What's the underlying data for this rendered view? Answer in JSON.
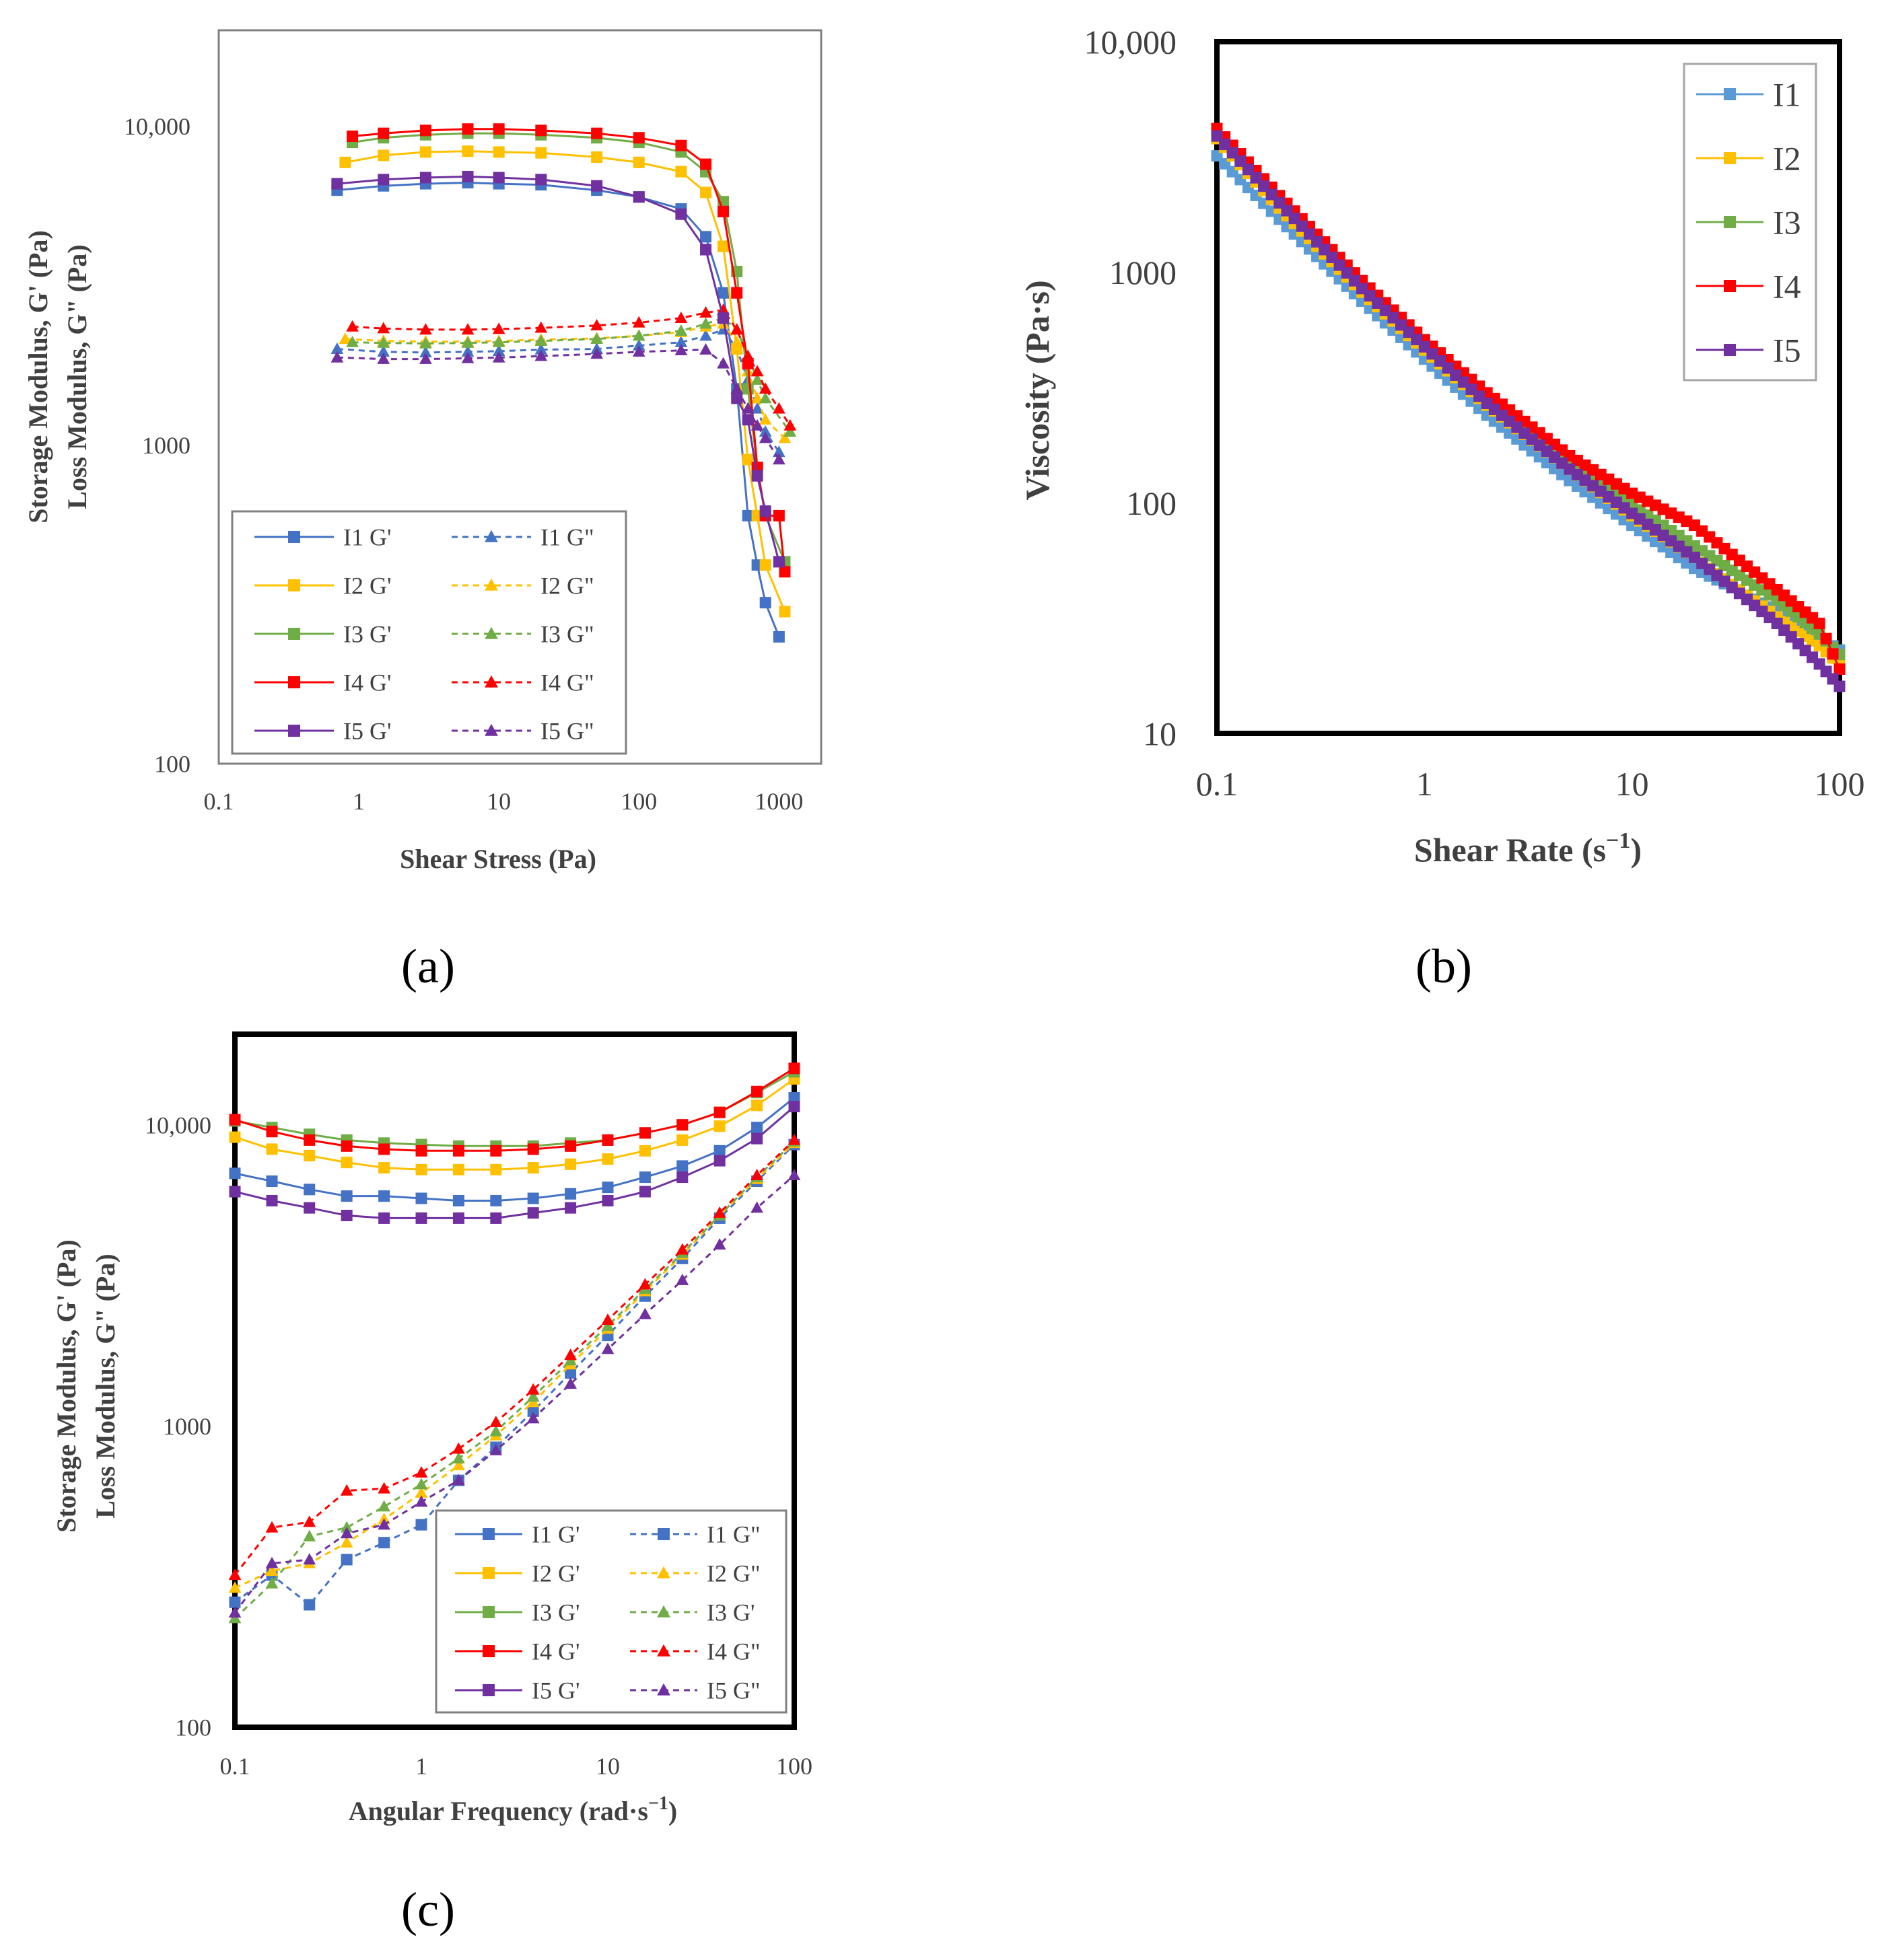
{
  "figure": {
    "panel_labels": [
      "(a)",
      "(b)",
      "(c)"
    ]
  },
  "colors": {
    "I1": "#4472c4",
    "I1b": "#5b9bd5",
    "I2": "#ffc000",
    "I3": "#70ad47",
    "I4": "#ff0000",
    "I5": "#7030a0"
  },
  "chart_data": [
    {
      "id": "a",
      "type": "line",
      "xscale": "log",
      "yscale": "log",
      "xlabel": "Shear Stress (Pa)",
      "ylabel_lines": [
        "Storage Modulus, G' (Pa)",
        "Loss Modulus, G\" (Pa)"
      ],
      "xlim": [
        0.1,
        2000
      ],
      "ylim": [
        100,
        20000
      ],
      "xticks": [
        {
          "value": 0.1,
          "label": "0.1"
        },
        {
          "value": 1,
          "label": "1"
        },
        {
          "value": 10,
          "label": "10"
        },
        {
          "value": 100,
          "label": "100"
        },
        {
          "value": 1000,
          "label": "1000"
        }
      ],
      "yticks": [
        {
          "value": 100,
          "label": "100"
        },
        {
          "value": 1000,
          "label": "1000"
        },
        {
          "value": 10000,
          "label": "10,000"
        }
      ],
      "legend": "bottom-left",
      "series": [
        {
          "name": "I1 G'",
          "color": "#4472c4",
          "marker": "square",
          "dash": false,
          "x": [
            0.7,
            1.5,
            3,
            6,
            10,
            20,
            50,
            100,
            200,
            300,
            400,
            500,
            600,
            700,
            800,
            1000
          ],
          "y": [
            6300,
            6500,
            6600,
            6650,
            6600,
            6550,
            6300,
            6000,
            5500,
            4500,
            3000,
            1500,
            600,
            420,
            320,
            250
          ]
        },
        {
          "name": "I1 G\"",
          "color": "#4472c4",
          "marker": "triangle",
          "dash": true,
          "x": [
            0.7,
            1.5,
            3,
            6,
            10,
            20,
            50,
            100,
            200,
            300,
            400,
            500,
            600,
            700,
            800,
            1000
          ],
          "y": [
            2000,
            1960,
            1950,
            1960,
            1970,
            1990,
            2000,
            2050,
            2100,
            2200,
            2300,
            2000,
            1600,
            1300,
            1100,
            950
          ]
        },
        {
          "name": "I2 G'",
          "color": "#ffc000",
          "marker": "square",
          "dash": false,
          "x": [
            0.8,
            1.5,
            3,
            6,
            10,
            20,
            50,
            100,
            200,
            300,
            400,
            500,
            600,
            700,
            800,
            1100
          ],
          "y": [
            7700,
            8100,
            8300,
            8350,
            8300,
            8250,
            8000,
            7700,
            7200,
            6200,
            4200,
            2000,
            900,
            600,
            420,
            300
          ]
        },
        {
          "name": "I2 G\"",
          "color": "#ffc000",
          "marker": "triangle",
          "dash": true,
          "x": [
            0.8,
            1.5,
            3,
            6,
            10,
            20,
            50,
            100,
            200,
            300,
            400,
            500,
            600,
            700,
            800,
            1100
          ],
          "y": [
            2150,
            2120,
            2110,
            2110,
            2120,
            2140,
            2160,
            2200,
            2260,
            2350,
            2400,
            2100,
            1700,
            1400,
            1200,
            1050
          ]
        },
        {
          "name": "I3 G'",
          "color": "#70ad47",
          "marker": "square",
          "dash": false,
          "x": [
            0.9,
            1.5,
            3,
            6,
            10,
            20,
            50,
            100,
            200,
            300,
            400,
            500,
            600,
            700,
            800,
            1100
          ],
          "y": [
            8900,
            9200,
            9400,
            9500,
            9500,
            9400,
            9200,
            8900,
            8300,
            7200,
            5800,
            3500,
            1500,
            850,
            600,
            430
          ]
        },
        {
          "name": "I3 G\"",
          "color": "#70ad47",
          "marker": "triangle",
          "dash": true,
          "x": [
            0.9,
            1.5,
            3,
            6,
            10,
            20,
            50,
            100,
            200,
            300,
            400,
            500,
            600,
            700,
            800,
            1200
          ],
          "y": [
            2100,
            2090,
            2080,
            2090,
            2100,
            2120,
            2150,
            2200,
            2280,
            2400,
            2500,
            2300,
            1900,
            1600,
            1400,
            1100
          ]
        },
        {
          "name": "I4 G'",
          "color": "#ff0000",
          "marker": "square",
          "dash": false,
          "x": [
            0.9,
            1.5,
            3,
            6,
            10,
            20,
            50,
            100,
            200,
            300,
            400,
            500,
            600,
            700,
            800,
            1000,
            1100
          ],
          "y": [
            9300,
            9500,
            9700,
            9800,
            9800,
            9700,
            9500,
            9200,
            8700,
            7600,
            5400,
            3000,
            1800,
            850,
            600,
            600,
            400
          ]
        },
        {
          "name": "I4 G\"",
          "color": "#ff0000",
          "marker": "triangle",
          "dash": true,
          "x": [
            0.9,
            1.5,
            3,
            6,
            10,
            20,
            50,
            100,
            200,
            300,
            400,
            500,
            600,
            700,
            800,
            1000,
            1200
          ],
          "y": [
            2350,
            2320,
            2300,
            2300,
            2310,
            2330,
            2370,
            2420,
            2500,
            2600,
            2650,
            2300,
            1900,
            1700,
            1500,
            1300,
            1150
          ]
        },
        {
          "name": "I5 G'",
          "color": "#7030a0",
          "marker": "square",
          "dash": false,
          "x": [
            0.7,
            1.5,
            3,
            6,
            10,
            20,
            50,
            100,
            200,
            300,
            400,
            500,
            600,
            700,
            800,
            1000
          ],
          "y": [
            6600,
            6800,
            6900,
            6950,
            6900,
            6800,
            6500,
            6000,
            5300,
            4100,
            2500,
            1400,
            1200,
            800,
            620,
            430
          ]
        },
        {
          "name": "I5 G\"",
          "color": "#7030a0",
          "marker": "triangle",
          "dash": true,
          "x": [
            0.7,
            1.5,
            3,
            6,
            10,
            20,
            50,
            100,
            200,
            300,
            400,
            500,
            600,
            700,
            800,
            1000
          ],
          "y": [
            1880,
            1860,
            1860,
            1870,
            1880,
            1900,
            1930,
            1960,
            1980,
            1990,
            1800,
            1500,
            1300,
            1150,
            1050,
            900
          ]
        }
      ]
    },
    {
      "id": "b",
      "type": "line",
      "xscale": "log",
      "yscale": "log",
      "xlabel": "Shear Rate (s",
      "xlabel_sup": "−1",
      "xlabel_end": ")",
      "ylabel": "Viscosity (Pa·s)",
      "xlim": [
        0.1,
        100
      ],
      "ylim": [
        10,
        10000
      ],
      "xticks": [
        {
          "value": 0.1,
          "label": "0.1"
        },
        {
          "value": 1,
          "label": "1"
        },
        {
          "value": 10,
          "label": "10"
        },
        {
          "value": 100,
          "label": "100"
        }
      ],
      "yticks": [
        {
          "value": 10,
          "label": "10"
        },
        {
          "value": 100,
          "label": "100"
        },
        {
          "value": 1000,
          "label": "1000"
        },
        {
          "value": 10000,
          "label": "10,000"
        }
      ],
      "legend": "top-right",
      "series": [
        {
          "name": "I1",
          "color": "#5b9bd5",
          "marker": "square",
          "x": [
            0.1,
            0.2,
            0.5,
            1,
            2,
            5,
            10,
            20,
            50,
            80,
            100
          ],
          "y": [
            3200,
            1700,
            750,
            420,
            240,
            125,
            80,
            52,
            34,
            26,
            23
          ]
        },
        {
          "name": "I2",
          "color": "#ffc000",
          "marker": "square",
          "x": [
            0.1,
            0.2,
            0.5,
            1,
            2,
            5,
            10,
            20,
            50,
            80,
            100
          ],
          "y": [
            3800,
            1900,
            820,
            460,
            265,
            140,
            88,
            58,
            32,
            24,
            20
          ]
        },
        {
          "name": "I3",
          "color": "#70ad47",
          "marker": "square",
          "x": [
            0.1,
            0.2,
            0.5,
            1,
            2,
            5,
            10,
            20,
            50,
            80,
            100
          ],
          "y": [
            4000,
            2050,
            880,
            490,
            285,
            150,
            98,
            65,
            38,
            27,
            22
          ]
        },
        {
          "name": "I4",
          "color": "#ff0000",
          "marker": "square",
          "x": [
            0.1,
            0.2,
            0.5,
            1,
            2,
            5,
            10,
            20,
            50,
            80,
            100
          ],
          "y": [
            4200,
            2150,
            920,
            510,
            300,
            160,
            110,
            80,
            42,
            30,
            19
          ]
        },
        {
          "name": "I5",
          "color": "#7030a0",
          "marker": "square",
          "x": [
            0.1,
            0.2,
            0.5,
            1,
            2,
            5,
            10,
            20,
            50,
            80,
            100
          ],
          "y": [
            3900,
            2000,
            850,
            475,
            270,
            140,
            90,
            58,
            30,
            20,
            16
          ]
        }
      ]
    },
    {
      "id": "c",
      "type": "line",
      "xscale": "log",
      "yscale": "log",
      "xlabel": "Angular Frequency (rad·s",
      "xlabel_sup": "−1",
      "xlabel_end": ")",
      "ylabel_lines": [
        "Storage Modulus, G' (Pa)",
        "Loss Modulus, G\" (Pa)"
      ],
      "xlim": [
        0.1,
        100
      ],
      "ylim": [
        100,
        20000
      ],
      "xticks": [
        {
          "value": 0.1,
          "label": "0.1"
        },
        {
          "value": 1,
          "label": "1"
        },
        {
          "value": 10,
          "label": "10"
        },
        {
          "value": 100,
          "label": "100"
        }
      ],
      "yticks": [
        {
          "value": 100,
          "label": "100"
        },
        {
          "value": 1000,
          "label": "1000"
        },
        {
          "value": 10000,
          "label": "10,000"
        }
      ],
      "legend": "bottom-right",
      "legend_labels": [
        "I1 G'",
        "I1 G\"",
        "I2 G'",
        "I2 G\"",
        "I3 G'",
        "I3 G'",
        "I4 G'",
        "I4 G\"",
        "I5 G'",
        "I5 G\""
      ],
      "x_points": [
        0.1,
        0.158,
        0.251,
        0.398,
        0.631,
        1,
        1.585,
        2.512,
        3.981,
        6.31,
        10,
        15.85,
        25.12,
        39.81,
        63.1,
        100
      ],
      "series": [
        {
          "name": "I1 G'",
          "color": "#4472c4",
          "marker": "square",
          "dash": false,
          "y": [
            6900,
            6500,
            6100,
            5800,
            5800,
            5700,
            5600,
            5600,
            5700,
            5900,
            6200,
            6700,
            7300,
            8200,
            9800,
            12300
          ]
        },
        {
          "name": "I1 G\"",
          "color": "#4472c4",
          "marker": "square",
          "dash": true,
          "y": [
            260,
            320,
            255,
            360,
            410,
            470,
            660,
            850,
            1120,
            1500,
            2000,
            2700,
            3600,
            4900,
            6500,
            8600
          ]
        },
        {
          "name": "I2 G'",
          "color": "#ffc000",
          "marker": "square",
          "dash": false,
          "y": [
            9100,
            8300,
            7900,
            7500,
            7200,
            7100,
            7100,
            7100,
            7200,
            7400,
            7700,
            8200,
            8900,
            9900,
            11600,
            14200
          ]
        },
        {
          "name": "I2 G\"",
          "color": "#ffc000",
          "marker": "triangle",
          "dash": true,
          "y": [
            290,
            330,
            350,
            410,
            490,
            600,
            740,
            930,
            1200,
            1600,
            2100,
            2800,
            3700,
            5000,
            6600,
            8700
          ]
        },
        {
          "name": "I3 G'",
          "color": "#70ad47",
          "marker": "square",
          "dash": false,
          "y": [
            10300,
            9800,
            9300,
            8900,
            8700,
            8600,
            8500,
            8500,
            8500,
            8700,
            8900,
            9400,
            10000,
            11000,
            12800,
            15000
          ]
        },
        {
          "name": "I3 G'",
          "color": "#70ad47",
          "marker": "triangle",
          "dash": true,
          "y": [
            230,
            300,
            430,
            460,
            540,
            640,
            780,
            960,
            1250,
            1650,
            2150,
            2850,
            3750,
            5000,
            6700,
            8800
          ]
        },
        {
          "name": "I4 G'",
          "color": "#ff0000",
          "marker": "square",
          "dash": false,
          "y": [
            10400,
            9500,
            8900,
            8500,
            8300,
            8200,
            8200,
            8200,
            8300,
            8500,
            8900,
            9400,
            10000,
            11000,
            12900,
            15400
          ]
        },
        {
          "name": "I4 G\"",
          "color": "#ff0000",
          "marker": "triangle",
          "dash": true,
          "y": [
            320,
            460,
            480,
            610,
            620,
            700,
            840,
            1030,
            1320,
            1720,
            2250,
            2950,
            3850,
            5100,
            6800,
            8900
          ]
        },
        {
          "name": "I5 G'",
          "color": "#7030a0",
          "marker": "square",
          "dash": false,
          "y": [
            6000,
            5600,
            5300,
            5000,
            4900,
            4900,
            4900,
            4900,
            5100,
            5300,
            5600,
            6000,
            6700,
            7600,
            9000,
            11500
          ]
        },
        {
          "name": "I5 G\"",
          "color": "#7030a0",
          "marker": "triangle",
          "dash": true,
          "y": [
            240,
            350,
            360,
            440,
            470,
            560,
            660,
            830,
            1060,
            1380,
            1800,
            2350,
            3050,
            4000,
            5300,
            6800
          ]
        }
      ]
    }
  ]
}
